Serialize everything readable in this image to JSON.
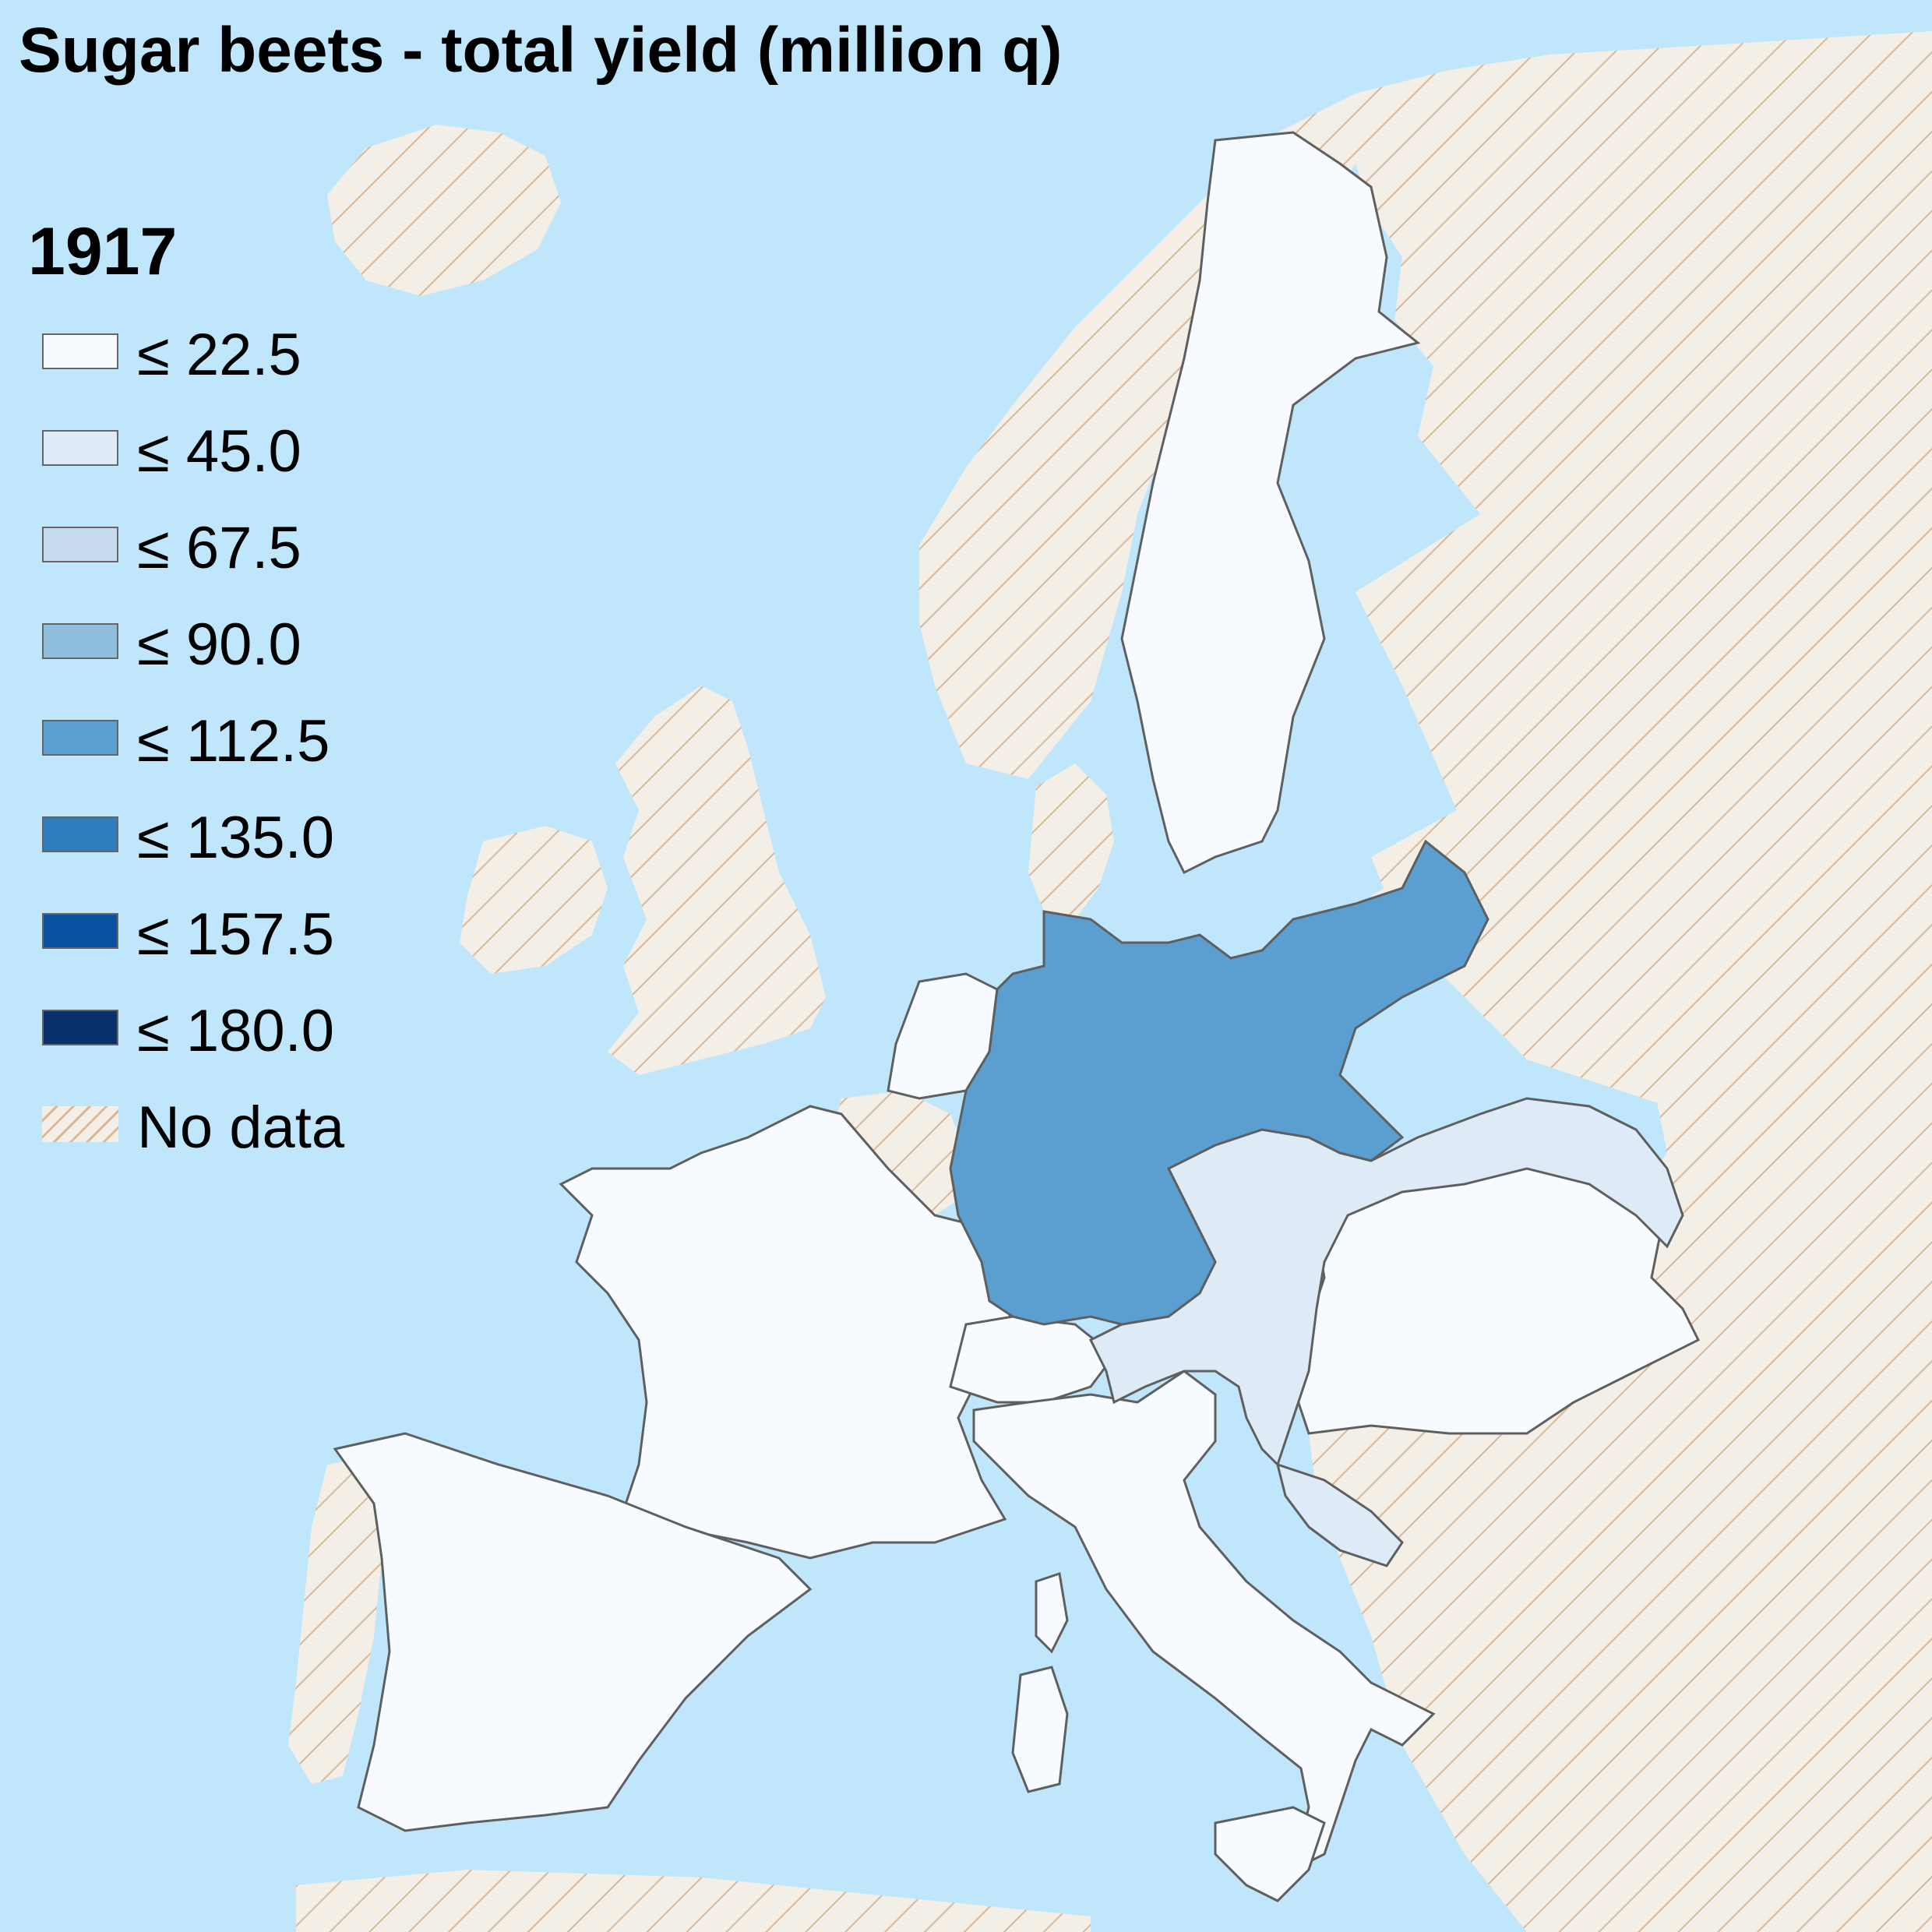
{
  "title": "Sugar beets - total yield (million q)",
  "year": "1917",
  "colors": {
    "sea": "#bfe6fb",
    "nodata_fill": "#f4efe6",
    "nodata_stripe": "#d8b898",
    "border": "#5f5f5f"
  },
  "legend": [
    {
      "label": "≤ 22.5",
      "color": "#f7fbff"
    },
    {
      "label": "≤ 45.0",
      "color": "#deebf7"
    },
    {
      "label": "≤ 67.5",
      "color": "#c6dbef"
    },
    {
      "label": "≤ 90.0",
      "color": "#8fbfdd"
    },
    {
      "label": "≤ 112.5",
      "color": "#5a9fcf"
    },
    {
      "label": "≤ 135.0",
      "color": "#2f7dbf"
    },
    {
      "label": "≤ 157.5",
      "color": "#0a52a0"
    },
    {
      "label": "≤ 180.0",
      "color": "#08306b"
    },
    {
      "label": "No data",
      "color": "nodata"
    }
  ],
  "regions": [
    {
      "name": "Sweden",
      "class": "≤ 22.5"
    },
    {
      "name": "Netherlands",
      "class": "≤ 22.5"
    },
    {
      "name": "France",
      "class": "≤ 22.5"
    },
    {
      "name": "Spain",
      "class": "≤ 22.5"
    },
    {
      "name": "Switzerland",
      "class": "≤ 22.5"
    },
    {
      "name": "Italy",
      "class": "≤ 22.5"
    },
    {
      "name": "Hungary",
      "class": "≤ 22.5"
    },
    {
      "name": "Germany",
      "class": "≤ 112.5"
    },
    {
      "name": "Austria",
      "class": "≤ 45.0"
    },
    {
      "name": "Belgium",
      "class": "No data"
    }
  ]
}
